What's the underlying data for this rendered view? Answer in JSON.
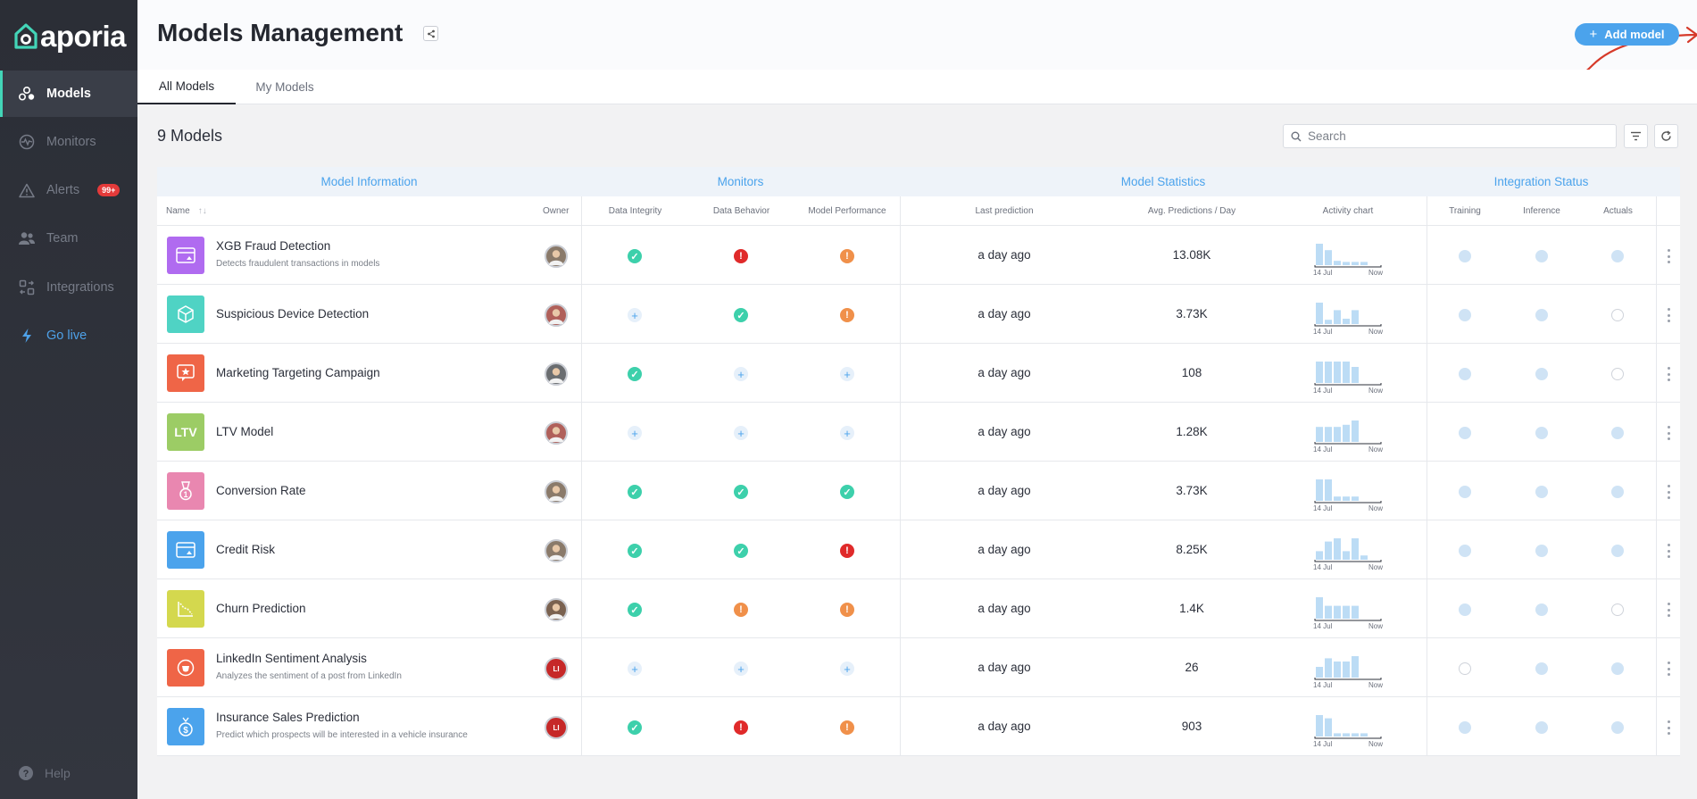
{
  "app": {
    "logo_text": "aporia",
    "brand_color": "#43d5b8",
    "accent_color": "#4ba3ec"
  },
  "sidebar": {
    "items": [
      {
        "label": "Models",
        "icon": "models-icon"
      },
      {
        "label": "Monitors",
        "icon": "monitors-icon"
      },
      {
        "label": "Alerts",
        "icon": "alerts-icon",
        "badge": "99+"
      },
      {
        "label": "Team",
        "icon": "team-icon"
      },
      {
        "label": "Integrations",
        "icon": "integrations-icon"
      },
      {
        "label": "Go live",
        "icon": "lightning-icon"
      }
    ],
    "help_label": "Help"
  },
  "header": {
    "title": "Models Management",
    "add_label": "Add model"
  },
  "tabs": [
    {
      "label": "All Models",
      "active": true
    },
    {
      "label": "My Models",
      "active": false
    }
  ],
  "toolbar": {
    "count_label": "9 Models",
    "search_placeholder": "Search"
  },
  "table": {
    "groups": [
      "Model Information",
      "Monitors",
      "Model Statistics",
      "Integration Status"
    ],
    "columns": {
      "name": "Name",
      "owner": "Owner",
      "data_integrity": "Data Integrity",
      "data_behavior": "Data Behavior",
      "model_performance": "Model Performance",
      "last_prediction": "Last prediction",
      "avg": "Avg. Predictions / Day",
      "activity": "Activity chart",
      "training": "Training",
      "inference": "Inference",
      "actuals": "Actuals"
    },
    "chart_axis": {
      "start": "14 Jul",
      "end": "Now"
    },
    "rows": [
      {
        "name": "XGB Fraud Detection",
        "desc": "Detects fraudulent transactions in models",
        "icon_color": "#b06bf0",
        "owner": "",
        "owner_color": "#8a7a6a",
        "integrity": "ok",
        "behavior": "err",
        "performance": "warn",
        "last": "a day ago",
        "avg": "13.08K",
        "activity": [
          1.0,
          0.7,
          0.2,
          0.15,
          0.15,
          0.15
        ],
        "training": "on",
        "inference": "on",
        "actuals": "on"
      },
      {
        "name": "Suspicious Device Detection",
        "desc": "",
        "icon_color": "#4fd3c4",
        "owner": "",
        "owner_color": "#b0605a",
        "integrity": "add",
        "behavior": "ok",
        "performance": "warn",
        "last": "a day ago",
        "avg": "3.73K",
        "activity": [
          1.0,
          0.2,
          0.65,
          0.25,
          0.65,
          0.0
        ],
        "training": "on",
        "inference": "on",
        "actuals": "off"
      },
      {
        "name": "Marketing Targeting Campaign",
        "desc": "",
        "icon_color": "#ef6547",
        "owner": "",
        "owner_color": "#6a6d70",
        "integrity": "ok",
        "behavior": "add",
        "performance": "add",
        "last": "a day ago",
        "avg": "108",
        "activity": [
          1.0,
          1.0,
          1.0,
          1.0,
          0.75,
          0.0
        ],
        "training": "on",
        "inference": "on",
        "actuals": "off"
      },
      {
        "name": "LTV Model",
        "desc": "",
        "icon_color": "#9ccc65",
        "icon_text": "LTV",
        "owner": "",
        "owner_color": "#b0605a",
        "integrity": "add",
        "behavior": "add",
        "performance": "add",
        "last": "a day ago",
        "avg": "1.28K",
        "activity": [
          0.7,
          0.7,
          0.7,
          0.8,
          1.0,
          0.0
        ],
        "training": "on",
        "inference": "on",
        "actuals": "on"
      },
      {
        "name": "Conversion Rate",
        "desc": "",
        "icon_color": "#e987b0",
        "owner": "",
        "owner_color": "#8a7a6a",
        "integrity": "ok",
        "behavior": "ok",
        "performance": "ok",
        "last": "a day ago",
        "avg": "3.73K",
        "activity": [
          1.0,
          1.0,
          0.2,
          0.2,
          0.2,
          0.0
        ],
        "training": "on",
        "inference": "on",
        "actuals": "on"
      },
      {
        "name": "Credit Risk",
        "desc": "",
        "icon_color": "#4ba3ec",
        "owner": "",
        "owner_color": "#8a7a6a",
        "integrity": "ok",
        "behavior": "ok",
        "performance": "err",
        "last": "a day ago",
        "avg": "8.25K",
        "activity": [
          0.4,
          0.85,
          1.0,
          0.4,
          1.0,
          0.2
        ],
        "training": "on",
        "inference": "on",
        "actuals": "on"
      },
      {
        "name": "Churn Prediction",
        "desc": "",
        "icon_color": "#d4d84e",
        "owner": "",
        "owner_color": "#7a6250",
        "integrity": "ok",
        "behavior": "warn",
        "performance": "warn",
        "last": "a day ago",
        "avg": "1.4K",
        "activity": [
          1.0,
          0.6,
          0.6,
          0.6,
          0.6,
          0.0
        ],
        "training": "on",
        "inference": "on",
        "actuals": "off"
      },
      {
        "name": "LinkedIn Sentiment Analysis",
        "desc": "Analyzes the sentiment of a post from LinkedIn",
        "icon_color": "#ef6547",
        "owner": "LI",
        "owner_color": "#c62828",
        "integrity": "add",
        "behavior": "add",
        "performance": "add",
        "last": "a day ago",
        "avg": "26",
        "activity": [
          0.5,
          0.9,
          0.75,
          0.75,
          1.0,
          0.0
        ],
        "training": "off",
        "inference": "on",
        "actuals": "on"
      },
      {
        "name": "Insurance Sales Prediction",
        "desc": "Predict which prospects will be interested in a vehicle insurance",
        "icon_color": "#4ba3ec",
        "owner": "LI",
        "owner_color": "#c62828",
        "integrity": "ok",
        "behavior": "err",
        "performance": "warn",
        "last": "a day ago",
        "avg": "903",
        "activity": [
          1.0,
          0.85,
          0.15,
          0.15,
          0.15,
          0.15
        ],
        "training": "on",
        "inference": "on",
        "actuals": "on"
      }
    ]
  }
}
